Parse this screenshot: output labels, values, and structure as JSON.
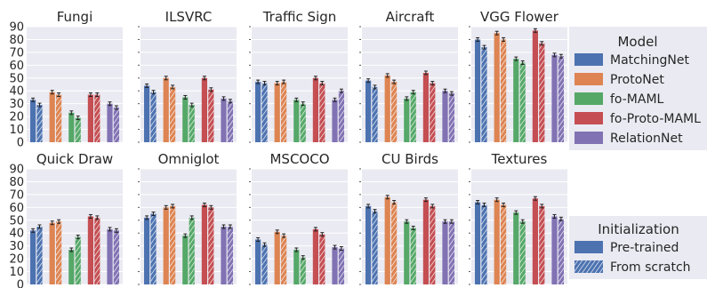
{
  "chart_data": {
    "type": "bar",
    "layout": "grid of 10 small-multiple bar charts (2 rows x 5) with two legends on the right",
    "ylim": [
      0,
      90
    ],
    "yticks": [
      "0",
      "10",
      "20",
      "30",
      "40",
      "50",
      "60",
      "70",
      "80",
      "90"
    ],
    "grid": true,
    "legend_model": {
      "title": "Model",
      "placement": "right",
      "entries": [
        {
          "name": "MatchingNet",
          "color": "#4c72b0"
        },
        {
          "name": "ProtoNet",
          "color": "#dd8452"
        },
        {
          "name": "fo-MAML",
          "color": "#55a868"
        },
        {
          "name": "fo-Proto-MAML",
          "color": "#c44e52"
        },
        {
          "name": "RelationNet",
          "color": "#8172b3"
        }
      ]
    },
    "legend_init": {
      "title": "Initialization",
      "placement": "bottom-right",
      "entries": [
        {
          "name": "Pre-trained",
          "hatch": false
        },
        {
          "name": "From scratch",
          "hatch": true
        }
      ]
    },
    "series_order": [
      "MatchingNet",
      "ProtoNet",
      "fo-MAML",
      "fo-Proto-MAML",
      "RelationNet"
    ],
    "panels": [
      {
        "title": "Fungi",
        "pretrained": [
          33,
          39,
          23,
          37,
          30
        ],
        "scratch": [
          29,
          37,
          19,
          37,
          27
        ]
      },
      {
        "title": "ILSVRC",
        "pretrained": [
          44,
          50,
          35,
          50,
          34
        ],
        "scratch": [
          39,
          43,
          29,
          41,
          32
        ]
      },
      {
        "title": "Traffic Sign",
        "pretrained": [
          47,
          46,
          33,
          50,
          33
        ],
        "scratch": [
          46,
          47,
          30,
          46,
          40
        ]
      },
      {
        "title": "Aircraft",
        "pretrained": [
          48,
          52,
          34,
          54,
          40
        ],
        "scratch": [
          43,
          47,
          39,
          46,
          38
        ]
      },
      {
        "title": "VGG Flower",
        "pretrained": [
          80,
          85,
          65,
          87,
          68
        ],
        "scratch": [
          74,
          80,
          62,
          77,
          67
        ]
      },
      {
        "title": "Quick Draw",
        "pretrained": [
          42,
          48,
          27,
          53,
          43
        ],
        "scratch": [
          45,
          49,
          37,
          52,
          42
        ]
      },
      {
        "title": "Omniglot",
        "pretrained": [
          52,
          60,
          38,
          62,
          45
        ],
        "scratch": [
          55,
          61,
          52,
          60,
          45
        ]
      },
      {
        "title": "MSCOCO",
        "pretrained": [
          35,
          41,
          27,
          43,
          29
        ],
        "scratch": [
          31,
          38,
          21,
          39,
          28
        ]
      },
      {
        "title": "CU Birds",
        "pretrained": [
          61,
          68,
          49,
          66,
          49
        ],
        "scratch": [
          57,
          64,
          44,
          61,
          49
        ]
      },
      {
        "title": "Textures",
        "pretrained": [
          64,
          66,
          56,
          67,
          53
        ],
        "scratch": [
          62,
          62,
          49,
          61,
          51
        ]
      }
    ]
  }
}
